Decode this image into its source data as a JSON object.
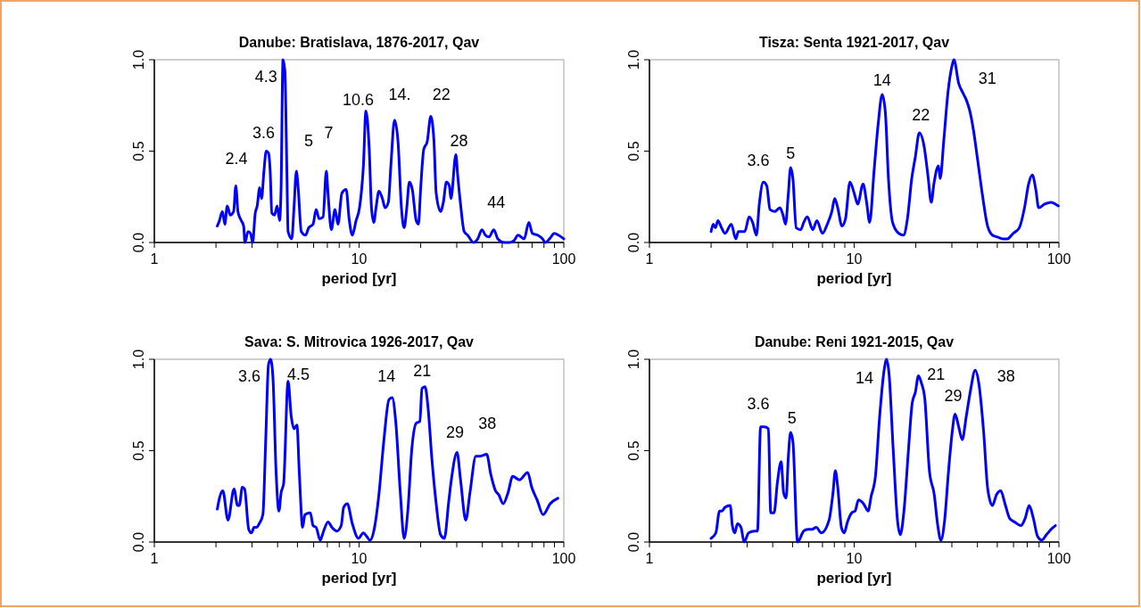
{
  "chart_data": [
    {
      "type": "line",
      "title": "Danube: Bratislava, 1876-2017, Qav",
      "xlabel": "period [yr]",
      "log": "x",
      "xlim": [
        1,
        100
      ],
      "xticks": [
        1,
        {
          "value": 2,
          "label": null
        },
        {
          "value": 3,
          "label": null
        },
        {
          "value": 4,
          "label": null
        },
        {
          "value": 5,
          "label": null
        },
        {
          "value": 6,
          "label": null
        },
        {
          "value": 7,
          "label": null
        },
        {
          "value": 8,
          "label": null
        },
        {
          "value": 9,
          "label": null
        },
        10,
        {
          "value": 20,
          "label": null
        },
        {
          "value": 30,
          "label": null
        },
        {
          "value": 40,
          "label": null
        },
        {
          "value": 50,
          "label": null
        },
        {
          "value": 60,
          "label": null
        },
        {
          "value": 70,
          "label": null
        },
        {
          "value": 80,
          "label": null
        },
        {
          "value": 90,
          "label": null
        },
        100
      ],
      "ylim": [
        0,
        1
      ],
      "yticks": [
        {
          "value": 0,
          "label": "0.0"
        },
        {
          "value": 0.5,
          "label": "0.5"
        },
        {
          "value": 1,
          "label": "1.0"
        }
      ],
      "annotations": [
        "2.4",
        "3.6",
        "4.3",
        "5",
        "7",
        "10.6",
        "14.",
        "22",
        "28",
        "44"
      ],
      "series": [
        {
          "color": "#0000ff",
          "x": [
            2.03,
            2.08,
            2.15,
            2.21,
            2.27,
            2.35,
            2.44,
            2.5,
            2.56,
            2.63,
            2.73,
            2.77,
            2.87,
            2.95,
            3.02,
            3.11,
            3.18,
            3.27,
            3.34,
            3.43,
            3.52,
            3.61,
            3.68,
            3.75,
            3.86,
            3.98,
            4.09,
            4.16,
            4.25,
            4.34,
            4.44,
            4.5,
            4.69,
            4.81,
            4.94,
            5.04,
            5.22,
            5.48,
            5.67,
            5.96,
            6.17,
            6.38,
            6.67,
            6.92,
            7.05,
            7.32,
            7.63,
            7.89,
            8.24,
            8.65,
            8.94,
            9.27,
            9.67,
            10.05,
            10.5,
            10.8,
            11.2,
            11.5,
            11.8,
            12.1,
            12.5,
            13.0,
            13.4,
            13.9,
            14.3,
            14.9,
            15.5,
            16.1,
            16.6,
            17.1,
            17.6,
            18.2,
            19.0,
            19.5,
            20.0,
            20.7,
            21.5,
            22.4,
            23.2,
            23.8,
            25.0,
            25.8,
            26.7,
            27.6,
            28.1,
            29.7,
            30.3,
            31.3,
            32.6,
            33.9,
            36.2,
            38.0,
            39.8,
            41.4,
            43.1,
            45.5,
            47.6,
            51.3,
            54.5,
            57.1,
            59.8,
            64.0,
            67.5,
            70.2,
            74.5,
            78.7,
            81.3,
            85.2,
            89.9,
            94.2,
            100
          ],
          "values": [
            0.09,
            0.12,
            0.17,
            0.1,
            0.2,
            0.15,
            0.17,
            0.31,
            0.17,
            0.13,
            0.09,
            0.0,
            0.06,
            0.05,
            0.0,
            0.16,
            0.2,
            0.3,
            0.24,
            0.39,
            0.5,
            0.49,
            0.39,
            0.16,
            0.15,
            0.2,
            0.12,
            0.3,
            1.0,
            0.94,
            0.39,
            0.06,
            0.02,
            0.19,
            0.39,
            0.3,
            0.06,
            0.04,
            0.08,
            0.1,
            0.18,
            0.13,
            0.14,
            0.39,
            0.27,
            0.07,
            0.18,
            0.1,
            0.27,
            0.29,
            0.13,
            0.04,
            0.12,
            0.19,
            0.42,
            0.72,
            0.52,
            0.19,
            0.11,
            0.19,
            0.28,
            0.24,
            0.19,
            0.22,
            0.42,
            0.67,
            0.55,
            0.19,
            0.08,
            0.19,
            0.33,
            0.29,
            0.12,
            0.1,
            0.3,
            0.51,
            0.55,
            0.69,
            0.56,
            0.27,
            0.17,
            0.22,
            0.33,
            0.31,
            0.24,
            0.48,
            0.37,
            0.21,
            0.06,
            0.04,
            0.0,
            0.02,
            0.07,
            0.04,
            0.03,
            0.07,
            0.02,
            0.0,
            0.0,
            0.01,
            0.04,
            0.02,
            0.11,
            0.05,
            0.04,
            0.02,
            0.0,
            0.02,
            0.05,
            0.04,
            0.02
          ]
        }
      ]
    },
    {
      "type": "line",
      "title": "Tisza: Senta 1921-2017, Qav",
      "xlabel": "period [yr]",
      "log": "x",
      "xlim": [
        1,
        100
      ],
      "xticks": [
        1,
        {
          "value": 2,
          "label": null
        },
        {
          "value": 3,
          "label": null
        },
        {
          "value": 4,
          "label": null
        },
        {
          "value": 5,
          "label": null
        },
        {
          "value": 6,
          "label": null
        },
        {
          "value": 7,
          "label": null
        },
        {
          "value": 8,
          "label": null
        },
        {
          "value": 9,
          "label": null
        },
        10,
        {
          "value": 20,
          "label": null
        },
        {
          "value": 30,
          "label": null
        },
        {
          "value": 40,
          "label": null
        },
        {
          "value": 50,
          "label": null
        },
        {
          "value": 60,
          "label": null
        },
        {
          "value": 70,
          "label": null
        },
        {
          "value": 80,
          "label": null
        },
        {
          "value": 90,
          "label": null
        },
        100
      ],
      "ylim": [
        0,
        1
      ],
      "yticks": [
        {
          "value": 0,
          "label": "0.0"
        },
        {
          "value": 0.5,
          "label": "0.5"
        },
        {
          "value": 1,
          "label": "1.0"
        }
      ],
      "annotations": [
        "3.6",
        "5",
        "14",
        "22",
        "31"
      ],
      "series": [
        {
          "color": "#0000ff",
          "x": [
            2.0,
            2.05,
            2.1,
            2.16,
            2.25,
            2.34,
            2.51,
            2.64,
            2.72,
            2.92,
            3.07,
            3.19,
            3.33,
            3.44,
            3.6,
            3.74,
            3.88,
            4.09,
            4.34,
            4.49,
            4.62,
            4.77,
            4.89,
            5.02,
            5.21,
            5.48,
            5.67,
            5.9,
            6.28,
            6.57,
            7.0,
            7.39,
            7.78,
            8.03,
            8.31,
            8.71,
            9.07,
            9.53,
            10.0,
            10.4,
            11.05,
            11.5,
            11.9,
            12.5,
            13.1,
            13.7,
            14.2,
            14.7,
            15.4,
            16.5,
            17.4,
            18.2,
            19.1,
            19.9,
            20.8,
            22.0,
            22.9,
            23.8,
            24.5,
            25.8,
            26.3,
            27.4,
            28.7,
            30.1,
            30.7,
            32.4,
            33.9,
            35.3,
            36.7,
            38.3,
            40.1,
            42.3,
            44.6,
            47.3,
            50.0,
            53.4,
            56.0,
            59.8,
            64.0,
            67.9,
            71.1,
            74.1,
            77.1,
            79.6,
            85.2,
            91.6,
            96.1,
            99.3
          ],
          "values": [
            0.06,
            0.1,
            0.08,
            0.12,
            0.08,
            0.05,
            0.1,
            0.02,
            0.06,
            0.06,
            0.14,
            0.11,
            0.04,
            0.21,
            0.33,
            0.31,
            0.18,
            0.17,
            0.19,
            0.15,
            0.1,
            0.27,
            0.41,
            0.35,
            0.08,
            0.07,
            0.11,
            0.14,
            0.07,
            0.12,
            0.05,
            0.1,
            0.17,
            0.24,
            0.19,
            0.09,
            0.13,
            0.33,
            0.27,
            0.21,
            0.32,
            0.22,
            0.11,
            0.39,
            0.65,
            0.81,
            0.71,
            0.35,
            0.11,
            0.05,
            0.04,
            0.13,
            0.35,
            0.47,
            0.6,
            0.52,
            0.37,
            0.22,
            0.32,
            0.42,
            0.35,
            0.56,
            0.82,
            0.97,
            1.0,
            0.87,
            0.82,
            0.78,
            0.72,
            0.61,
            0.45,
            0.26,
            0.1,
            0.04,
            0.03,
            0.02,
            0.02,
            0.05,
            0.08,
            0.19,
            0.32,
            0.37,
            0.29,
            0.19,
            0.21,
            0.22,
            0.21,
            0.2
          ]
        }
      ]
    },
    {
      "type": "line",
      "title": "Sava: S. Mitrovica  1926-2017, Qav",
      "xlabel": "period [yr]",
      "log": "x",
      "xlim": [
        1,
        100
      ],
      "xticks": [
        1,
        {
          "value": 2,
          "label": null
        },
        {
          "value": 3,
          "label": null
        },
        {
          "value": 4,
          "label": null
        },
        {
          "value": 5,
          "label": null
        },
        {
          "value": 6,
          "label": null
        },
        {
          "value": 7,
          "label": null
        },
        {
          "value": 8,
          "label": null
        },
        {
          "value": 9,
          "label": null
        },
        10,
        {
          "value": 20,
          "label": null
        },
        {
          "value": 30,
          "label": null
        },
        {
          "value": 40,
          "label": null
        },
        {
          "value": 50,
          "label": null
        },
        {
          "value": 60,
          "label": null
        },
        {
          "value": 70,
          "label": null
        },
        {
          "value": 80,
          "label": null
        },
        {
          "value": 90,
          "label": null
        },
        100
      ],
      "ylim": [
        0,
        1
      ],
      "yticks": [
        {
          "value": 0,
          "label": "0.0"
        },
        {
          "value": 0.5,
          "label": "0.5"
        },
        {
          "value": 1,
          "label": "1.0"
        }
      ],
      "annotations": [
        "3.6",
        "4.5",
        "14",
        "21",
        "29",
        "38"
      ],
      "series": [
        {
          "color": "#0000ff",
          "x": [
            2.03,
            2.08,
            2.16,
            2.29,
            2.45,
            2.55,
            2.6,
            2.69,
            2.76,
            2.89,
            2.98,
            3.07,
            3.16,
            3.25,
            3.39,
            3.5,
            3.61,
            3.7,
            3.8,
            3.93,
            4.06,
            4.16,
            4.28,
            4.5,
            4.66,
            4.81,
            4.97,
            5.11,
            5.3,
            5.44,
            5.78,
            5.96,
            6.17,
            6.46,
            6.71,
            7.05,
            7.37,
            7.79,
            8.18,
            8.41,
            8.76,
            9.27,
            9.93,
            10.5,
            10.9,
            11.3,
            11.9,
            12.5,
            13.2,
            14.0,
            14.5,
            15.1,
            15.9,
            16.6,
            17.3,
            18.1,
            19.0,
            19.8,
            20.3,
            21.0,
            21.7,
            22.7,
            23.8,
            25.0,
            26.1,
            27.4,
            28.3,
            30.1,
            31.3,
            33.2,
            34.8,
            37.2,
            39.0,
            42.0,
            44.0,
            46.4,
            48.0,
            50.6,
            53.4,
            56.3,
            60.7,
            66.6,
            69.7,
            74.1,
            79.2,
            85.8,
            93.5
          ],
          "values": [
            0.18,
            0.24,
            0.28,
            0.12,
            0.29,
            0.2,
            0.2,
            0.3,
            0.29,
            0.07,
            0.05,
            0.08,
            0.08,
            0.1,
            0.15,
            0.56,
            0.97,
            1.0,
            0.89,
            0.39,
            0.17,
            0.27,
            0.32,
            0.88,
            0.69,
            0.62,
            0.64,
            0.37,
            0.08,
            0.15,
            0.16,
            0.09,
            0.08,
            0.01,
            0.06,
            0.11,
            0.08,
            0.06,
            0.09,
            0.19,
            0.21,
            0.1,
            0.02,
            0.05,
            0.03,
            0.01,
            0.08,
            0.26,
            0.55,
            0.78,
            0.79,
            0.66,
            0.27,
            0.02,
            0.17,
            0.51,
            0.65,
            0.66,
            0.84,
            0.85,
            0.74,
            0.45,
            0.21,
            0.04,
            0.02,
            0.22,
            0.35,
            0.49,
            0.34,
            0.12,
            0.27,
            0.47,
            0.47,
            0.48,
            0.37,
            0.28,
            0.26,
            0.21,
            0.27,
            0.36,
            0.34,
            0.38,
            0.3,
            0.23,
            0.15,
            0.21,
            0.24
          ]
        }
      ]
    },
    {
      "type": "line",
      "title": "Danube: Reni 1921-2015, Qav",
      "xlabel": "period [yr]",
      "log": "x",
      "xlim": [
        1,
        100
      ],
      "xticks": [
        1,
        {
          "value": 2,
          "label": null
        },
        {
          "value": 3,
          "label": null
        },
        {
          "value": 4,
          "label": null
        },
        {
          "value": 5,
          "label": null
        },
        {
          "value": 6,
          "label": null
        },
        {
          "value": 7,
          "label": null
        },
        {
          "value": 8,
          "label": null
        },
        {
          "value": 9,
          "label": null
        },
        10,
        {
          "value": 20,
          "label": null
        },
        {
          "value": 30,
          "label": null
        },
        {
          "value": 40,
          "label": null
        },
        {
          "value": 50,
          "label": null
        },
        {
          "value": 60,
          "label": null
        },
        {
          "value": 70,
          "label": null
        },
        {
          "value": 80,
          "label": null
        },
        {
          "value": 90,
          "label": null
        },
        100
      ],
      "ylim": [
        0,
        1
      ],
      "yticks": [
        {
          "value": 0,
          "label": "0.0"
        },
        {
          "value": 0.5,
          "label": "0.5"
        },
        {
          "value": 1,
          "label": "1.0"
        }
      ],
      "annotations": [
        "3.6",
        "5",
        "14",
        "21",
        "29",
        "38"
      ],
      "series": [
        {
          "color": "#0000ff",
          "x": [
            2.0,
            2.11,
            2.2,
            2.26,
            2.34,
            2.48,
            2.54,
            2.61,
            2.69,
            2.8,
            2.9,
            3.05,
            3.26,
            3.37,
            3.49,
            3.63,
            3.81,
            3.91,
            4.06,
            4.22,
            4.4,
            4.52,
            4.65,
            4.77,
            4.89,
            5.02,
            5.29,
            5.67,
            5.94,
            6.23,
            6.53,
            6.91,
            7.54,
            7.88,
            8.09,
            8.31,
            8.66,
            8.94,
            9.27,
            9.73,
            10.1,
            10.5,
            11.1,
            11.7,
            12.1,
            12.7,
            13.3,
            14.0,
            14.4,
            14.8,
            15.5,
            16.3,
            16.8,
            17.5,
            18.4,
            19.2,
            19.9,
            20.6,
            21.3,
            22.1,
            23.3,
            24.6,
            25.6,
            26.5,
            27.6,
            28.9,
            30.1,
            31.1,
            32.4,
            33.7,
            35.3,
            37.0,
            39.0,
            40.6,
            42.9,
            44.9,
            47.3,
            49.6,
            52.0,
            54.5,
            57.4,
            60.7,
            65.2,
            68.4,
            71.6,
            75.0,
            78.7,
            82.4,
            86.9,
            91.6,
            96.1
          ],
          "values": [
            0.02,
            0.05,
            0.17,
            0.17,
            0.19,
            0.2,
            0.09,
            0.05,
            0.1,
            0.08,
            0.0,
            0.05,
            0.06,
            0.06,
            0.63,
            0.63,
            0.62,
            0.16,
            0.16,
            0.33,
            0.44,
            0.27,
            0.24,
            0.47,
            0.6,
            0.55,
            0.0,
            0.06,
            0.07,
            0.07,
            0.08,
            0.05,
            0.12,
            0.27,
            0.39,
            0.3,
            0.08,
            0.05,
            0.11,
            0.16,
            0.17,
            0.23,
            0.21,
            0.17,
            0.25,
            0.36,
            0.68,
            0.94,
            1.0,
            0.92,
            0.51,
            0.11,
            0.04,
            0.17,
            0.5,
            0.76,
            0.82,
            0.91,
            0.87,
            0.79,
            0.39,
            0.26,
            0.09,
            0.01,
            0.11,
            0.39,
            0.6,
            0.7,
            0.63,
            0.56,
            0.69,
            0.83,
            0.94,
            0.87,
            0.6,
            0.29,
            0.2,
            0.26,
            0.28,
            0.21,
            0.13,
            0.11,
            0.09,
            0.13,
            0.2,
            0.13,
            0.03,
            0.01,
            0.04,
            0.07,
            0.09
          ]
        }
      ]
    }
  ]
}
